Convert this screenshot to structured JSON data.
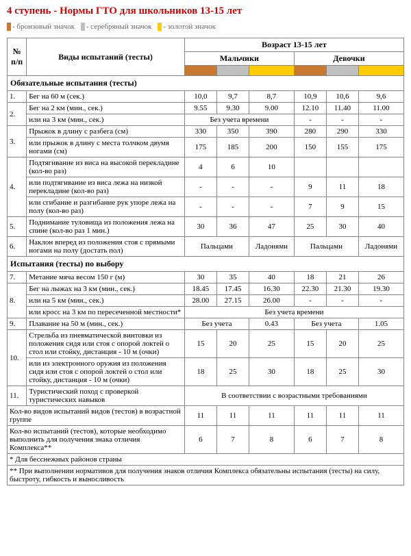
{
  "title": "4 ступень - Нормы ГТО для школьников 13-15 лет",
  "legend": {
    "bronze": {
      "color": "#c87830",
      "label": "- бронзовый значок"
    },
    "silver": {
      "color": "#bfbfbf",
      "label": "- серебряный значок"
    },
    "gold": {
      "color": "#ffcc00",
      "label": "- золотой значок"
    }
  },
  "header": {
    "idx": "№ п/п",
    "tests": "Виды испытаний (тесты)",
    "age": "Возраст 13-15 лет",
    "boys": "Мальчики",
    "girls": "Девочки"
  },
  "badge_colors": {
    "bronze": "#c87830",
    "silver": "#bfbfbf",
    "gold": "#ffcc00"
  },
  "sections": {
    "mandatory": "Обязательные испытания (тесты)",
    "optional": "Испытания (тесты) по выбору"
  },
  "rows": [
    {
      "idx": "1.",
      "name": "Бег на 60 м (сек.)",
      "b": [
        "10,0",
        "9,7",
        "8,7"
      ],
      "g": [
        "10,9",
        "10,6",
        "9,6"
      ]
    },
    {
      "idx": "2.",
      "name": "Бег на 2 км (мин., сек.)",
      "b": [
        "9.55",
        "9.30",
        "9.00"
      ],
      "g": [
        "12.10",
        "11.40",
        "11.00"
      ],
      "rowspan": 2
    },
    {
      "name": "или на 3 км (мин., сек.)",
      "boys_merge": "Без учета времени",
      "g": [
        "-",
        "-",
        "-"
      ]
    },
    {
      "idx": "3.",
      "name": "Прыжок в длину с разбега (см)",
      "b": [
        "330",
        "350",
        "390"
      ],
      "g": [
        "280",
        "290",
        "330"
      ],
      "rowspan": 2
    },
    {
      "name": "или прыжок в длину с места толчком двумя ногами (см)",
      "b": [
        "175",
        "185",
        "200"
      ],
      "g": [
        "150",
        "155",
        "175"
      ]
    },
    {
      "idx": "4.",
      "name": "Подтягивание из виса на высокой перекладине (кол-во раз)",
      "b": [
        "4",
        "6",
        "10"
      ],
      "g": [
        "",
        "",
        ""
      ],
      "rowspan": 3
    },
    {
      "name": "или подтягивание из виса лежа на низкой перекладине (кол-во раз)",
      "b": [
        "-",
        "-",
        "-"
      ],
      "g": [
        "9",
        "11",
        "18"
      ]
    },
    {
      "name": "или сгибание и разгибание рук упоре лежа на полу (кол-во раз)",
      "b": [
        "-",
        "-",
        "-"
      ],
      "g": [
        "7",
        "9",
        "15"
      ]
    },
    {
      "idx": "5.",
      "name": "Поднимание туловища из положения лежа на спине (кол-во раз 1 мин.)",
      "b": [
        "30",
        "36",
        "47"
      ],
      "g": [
        "25",
        "30",
        "40"
      ]
    },
    {
      "idx": "6.",
      "name": "Наклон вперед из положения стоя с прямыми ногами на полу (достать пол)",
      "boys_pair": [
        "Пальцами",
        "Ладонями"
      ],
      "girls_pair": [
        "Пальцами",
        "Ладонями"
      ]
    },
    {
      "idx": "7.",
      "name": "Метание мяча весом 150 г (м)",
      "b": [
        "30",
        "35",
        "40"
      ],
      "g": [
        "18",
        "21",
        "26"
      ]
    },
    {
      "idx": "8.",
      "name": "Бег на лыжах на 3 км (мин., сек.)",
      "b": [
        "18.45",
        "17.45",
        "16.30"
      ],
      "g": [
        "22.30",
        "21.30",
        "19.30"
      ],
      "rowspan": 3
    },
    {
      "name": "или на 5 км (мин., сек.)",
      "b": [
        "28.00",
        "27.15",
        "26.00"
      ],
      "g": [
        "-",
        "-",
        "-"
      ]
    },
    {
      "name": "или кросс на 3 км по пересеченной местности*",
      "all_merge": "Без учета времени"
    },
    {
      "idx": "9.",
      "name": "Плавание на 50 м (мин., сек.)",
      "boys_pair": [
        "Без учета",
        "0.43"
      ],
      "girls_pair": [
        "Без учета",
        "1.05"
      ]
    },
    {
      "idx": "10.",
      "name": "Стрельба из пневматической винтовки из положения сидя или стоя с опорой локтей о стол или стойку, дистанция - 10 м (очки)",
      "b": [
        "15",
        "20",
        "25"
      ],
      "g": [
        "15",
        "20",
        "25"
      ],
      "rowspan": 2
    },
    {
      "name": "или из электронного оружия из положения сидя или стоя с опорой локтей о стол или стойку, дистанция - 10 м (очки)",
      "b": [
        "18",
        "25",
        "30"
      ],
      "g": [
        "18",
        "25",
        "30"
      ]
    },
    {
      "idx": "11.",
      "name": "Туристический поход с проверкой туристических навыков",
      "all_merge": "В соответствии с возрастными требованиями"
    }
  ],
  "summary": [
    {
      "name": "Кол-во видов испытаний видов (тестов) в возрастной группе",
      "b": [
        "11",
        "11",
        "11"
      ],
      "g": [
        "11",
        "11",
        "11"
      ]
    },
    {
      "name": "Кол-во испытаний (тестов), которые необходимо выполнить для получения знака отличия Комплекса**",
      "b": [
        "6",
        "7",
        "8"
      ],
      "g": [
        "6",
        "7",
        "8"
      ]
    }
  ],
  "footnotes": [
    "* Для бесснежных районов страны",
    "** При выполнении нормативов для получения знаков отличия Комплекса обязательны испытания (тесты) на силу, быстроту, гибкость и выносливость"
  ]
}
